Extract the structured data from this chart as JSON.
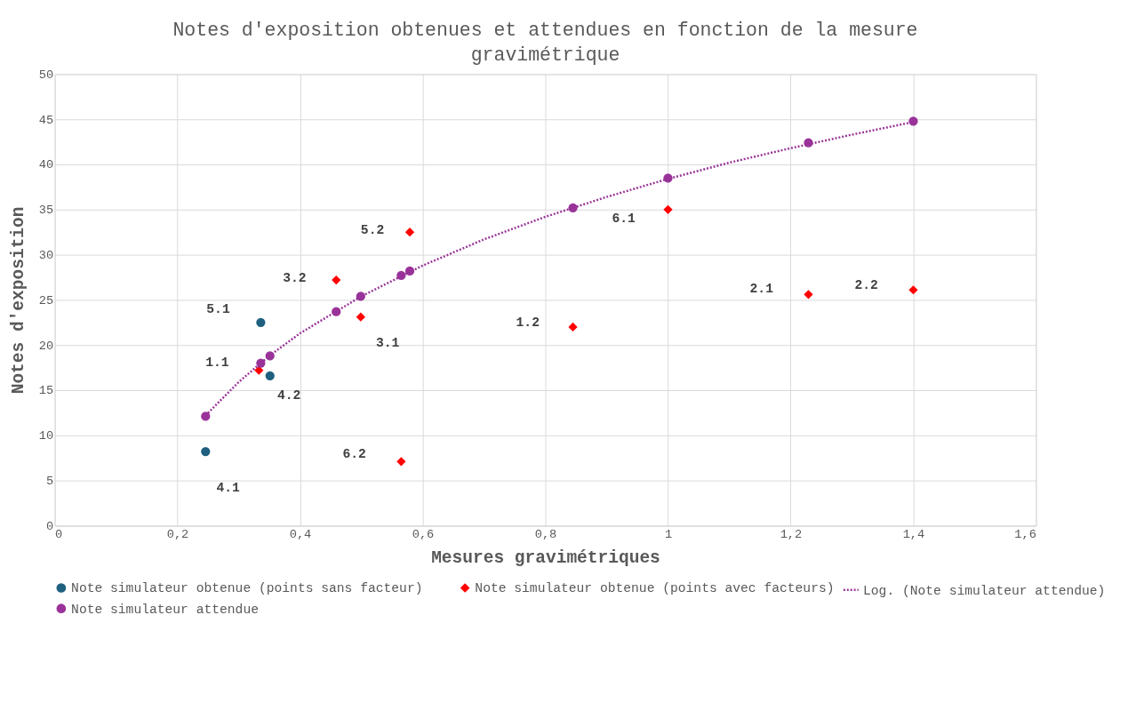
{
  "chart_data": {
    "type": "scatter",
    "title": "Notes d'exposition obtenues et attendues en fonction de la mesure gravimétrique",
    "xlabel": "Mesures gravimétriques",
    "ylabel": "Notes d'exposition",
    "series": [
      {
        "name": "Note simulateur obtenue (points sans facteur)",
        "color": "#1f6080",
        "marker": "circle",
        "x": [
          0.246,
          0.336,
          0.351
        ],
        "values": [
          8.2,
          22.5,
          16.6
        ]
      },
      {
        "name": "Note simulateur obtenue (points avec facteurs)",
        "color": "#ff0000",
        "marker": "diamond",
        "x": [
          0.333,
          0.459,
          0.499,
          0.579,
          0.565,
          0.845,
          1.0,
          1.229,
          1.4
        ],
        "values": [
          17.2,
          27.2,
          23.1,
          32.5,
          7.1,
          22.0,
          35.0,
          25.6,
          26.1
        ]
      },
      {
        "name": "Note simulateur attendue",
        "color": "#993399",
        "marker": "circle",
        "x": [
          0.246,
          0.336,
          0.351,
          0.459,
          0.499,
          0.565,
          0.579,
          0.845,
          1.0,
          1.229,
          1.4
        ],
        "values": [
          12.1,
          18.0,
          18.8,
          23.7,
          25.4,
          27.7,
          28.2,
          35.2,
          38.5,
          42.4,
          44.8
        ]
      },
      {
        "name": "Log. (Note simulateur attendue)",
        "color": "#993399",
        "type": "line",
        "line_style": "dotted",
        "marker": "none",
        "x": [
          0.246,
          0.3,
          0.35,
          0.4,
          0.5,
          0.6,
          0.7,
          0.8,
          0.9,
          1.0,
          1.1,
          1.2,
          1.3,
          1.4
        ],
        "values": [
          12.2,
          15.9,
          18.8,
          21.3,
          25.4,
          28.8,
          31.7,
          34.2,
          36.4,
          38.4,
          40.2,
          41.8,
          43.3,
          44.7
        ]
      }
    ],
    "annotations": [
      {
        "text": "5.1",
        "x": 0.336,
        "y": 22.5
      },
      {
        "text": "1.1",
        "x": 0.333,
        "y": 17.2
      },
      {
        "text": "4.2",
        "x": 0.351,
        "y": 16.6
      },
      {
        "text": "4.1",
        "x": 0.246,
        "y": 8.2
      },
      {
        "text": "3.2",
        "x": 0.459,
        "y": 27.2
      },
      {
        "text": "3.1",
        "x": 0.499,
        "y": 23.1
      },
      {
        "text": "5.2",
        "x": 0.579,
        "y": 32.5
      },
      {
        "text": "6.2",
        "x": 0.565,
        "y": 7.1
      },
      {
        "text": "1.2",
        "x": 0.845,
        "y": 22.0
      },
      {
        "text": "6.1",
        "x": 1.0,
        "y": 35.0
      },
      {
        "text": "2.1",
        "x": 1.229,
        "y": 25.6
      },
      {
        "text": "2.2",
        "x": 1.4,
        "y": 26.1
      }
    ],
    "xlim": [
      0,
      1.6
    ],
    "ylim": [
      0,
      50
    ],
    "xticks": [
      0,
      {
        "value": 0.2,
        "label": "0,2"
      },
      {
        "value": 0.4,
        "label": "0,4"
      },
      {
        "value": 0.6,
        "label": "0,6"
      },
      {
        "value": 0.8,
        "label": "0,8"
      },
      1,
      {
        "value": 1.2,
        "label": "1,2"
      },
      {
        "value": 1.4,
        "label": "1,4"
      },
      {
        "value": 1.6,
        "label": "1,6"
      }
    ],
    "yticks": [
      0,
      5,
      10,
      15,
      20,
      25,
      30,
      35,
      40,
      45,
      50
    ],
    "grid": true,
    "legend": "bottom"
  }
}
